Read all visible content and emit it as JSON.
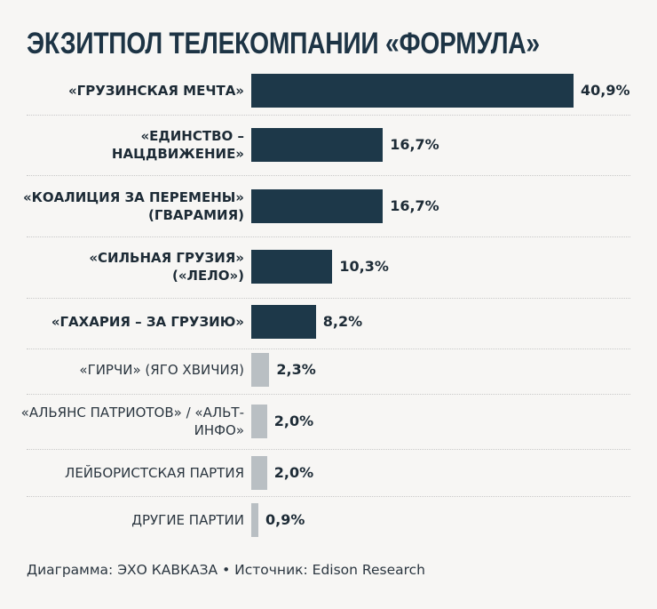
{
  "chart_data": {
    "type": "bar",
    "orientation": "horizontal",
    "title": "ЭКЗИТПОЛ ТЕЛЕКОМПАНИИ «ФОРМУЛА»",
    "categories": [
      "«ГРУЗИНСКАЯ МЕЧТА»",
      "«ЕДИНСТВО – НАЦДВИЖЕНИЕ»",
      "«КОАЛИЦИЯ ЗА ПЕРЕМЕНЫ» (ГВАРАМИЯ)",
      "«СИЛЬНАЯ ГРУЗИЯ» («ЛЕЛО»)",
      "«ГАХАРИЯ – ЗА ГРУЗИЮ»",
      "«ГИРЧИ» (ЯГО ХВИЧИЯ)",
      "«АЛЬЯНС ПАТРИОТОВ» / «АЛЬТ-ИНФО»",
      "ЛЕЙБОРИСТСКАЯ ПАРТИЯ",
      "ДРУГИЕ ПАРТИИ"
    ],
    "values": [
      40.9,
      16.7,
      16.7,
      10.3,
      8.2,
      2.3,
      2.0,
      2.0,
      0.9
    ],
    "value_labels": [
      "40,9%",
      "16,7%",
      "16,7%",
      "10,3%",
      "8,2%",
      "2,3%",
      "2,0%",
      "2,0%",
      "0,9%"
    ],
    "highlight": [
      true,
      true,
      true,
      true,
      true,
      false,
      false,
      false,
      false
    ],
    "colors": {
      "highlight": "#1d3849",
      "other": "#b9bfc3"
    },
    "xlabel": "",
    "ylabel": "",
    "grid": false,
    "legend": "none"
  },
  "footer": "Диаграмма: ЭХО КАВКАЗА • Источник: Edison Research"
}
